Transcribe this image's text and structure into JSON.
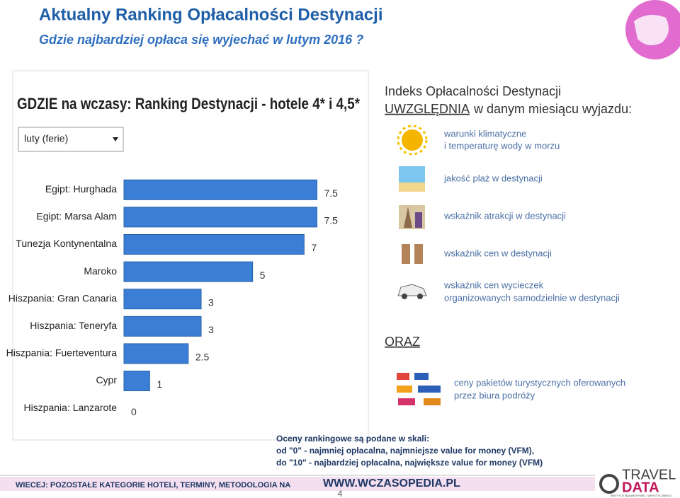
{
  "header": {
    "title": "Aktualny Ranking Opłacalności Destynacji",
    "subtitle": "Gdzie najbardziej opłaca się wyjechać w lutym 2016 ?"
  },
  "chart_data": {
    "type": "bar",
    "orientation": "horizontal",
    "title": "GDZIE na wczasy: Ranking Destynacji - hotele 4* i 4,5*",
    "filter": "luty (ferie)",
    "categories": [
      "Egipt: Hurghada",
      "Egipt: Marsa Alam",
      "Tunezja Kontynentalna",
      "Maroko",
      "Hiszpania: Gran Canaria",
      "Hiszpania: Teneryfa",
      "Hiszpania: Fuerteventura",
      "Cypr",
      "Hiszpania: Lanzarote"
    ],
    "values": [
      7.5,
      7.5,
      7,
      5,
      3,
      3,
      2.5,
      1,
      0
    ],
    "color": "#3a7fd5",
    "xlim": [
      0,
      9
    ]
  },
  "criteria": {
    "title": "Indeks Opłacalności Destynacji",
    "emphasis": "UWZGLĘDNIA",
    "subtitle": "w danym miesiącu wyjazdu:",
    "items": [
      [
        "warunki klimatyczne",
        "i temperaturę wody w morzu"
      ],
      [
        "jakość plaż w destynacji"
      ],
      [
        "wskaźnik atrakcji w destynacji"
      ],
      [
        "wskaźnik cen w destynacji"
      ],
      [
        "wskaźnik cen wycieczek",
        "organizowanych samodzielnie w destynacji"
      ]
    ]
  },
  "extra": {
    "label": "ORAZ",
    "lines": [
      "ceny pakietów turystycznych oferowanych",
      "przez biura podróży"
    ]
  },
  "scale_note": [
    "Oceny rankingowe są podane w skali:",
    "od \"0\" - najmniej opłacalna, najmniejsze value for money (VFM),",
    "do \"10\" - najbardziej opłacalna, największe value for money (VFM)"
  ],
  "footer": {
    "text": "WIECEJ: POZOSTAŁE KATEGORIE HOTELI, TERMINY, METODOLOGIA NA",
    "url": "WWW.WCZASOPEDIA.PL",
    "page": 4
  },
  "logo": {
    "line1": "TRAVEL",
    "line2": "DATA",
    "tagline": "INSTYTUT BADAŃ RYNKU TURYSTYCZNEGO"
  }
}
